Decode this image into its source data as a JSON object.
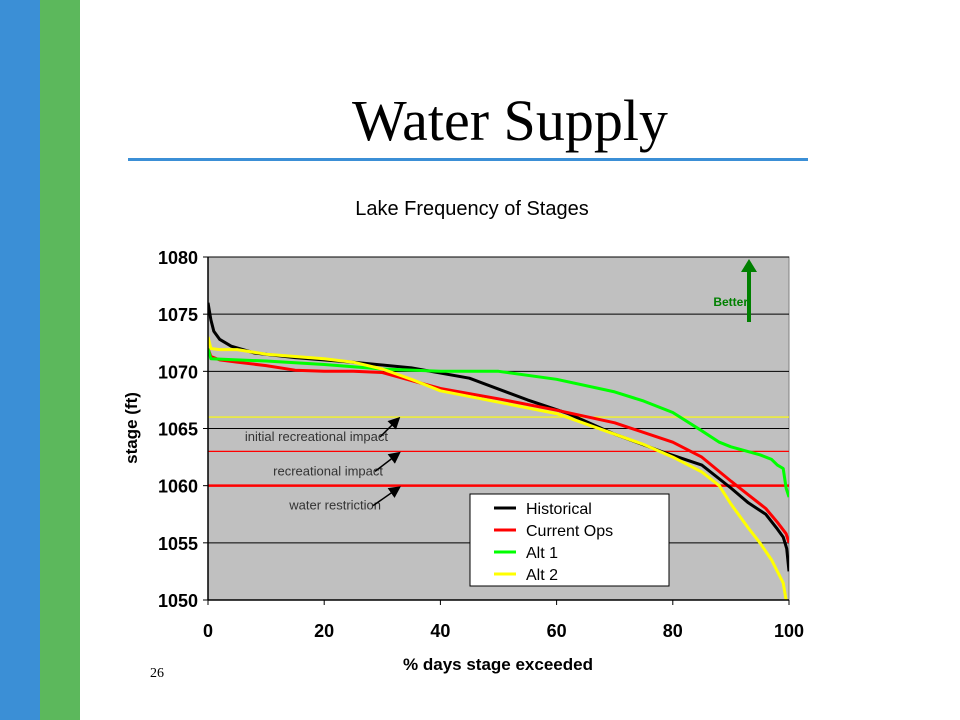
{
  "slide": {
    "title": "Water Supply",
    "number": "26"
  },
  "colors": {
    "accent_blue": "#3b8fd6",
    "accent_green": "#5cb85c",
    "plot_background": "#c0c0c0"
  },
  "chart_data": {
    "type": "line",
    "title": "Lake Frequency of Stages",
    "xlabel": "% days stage exceeded",
    "ylabel": "stage (ft)",
    "xlim": [
      0,
      100
    ],
    "ylim": [
      1050,
      1080
    ],
    "xticks": [
      0,
      20,
      40,
      60,
      80,
      100
    ],
    "yticks": [
      1050,
      1055,
      1060,
      1065,
      1070,
      1075,
      1080
    ],
    "grid": "horizontal",
    "legend_position": "bottom-right",
    "series": [
      {
        "name": "Historical",
        "color": "#000000",
        "x": [
          0,
          0.5,
          1,
          2,
          4,
          8,
          15,
          25,
          35,
          45,
          55,
          62,
          70,
          78,
          85,
          90,
          93,
          96,
          98,
          99,
          99.6,
          100
        ],
        "y": [
          1076,
          1074.5,
          1073.5,
          1072.8,
          1072.2,
          1071.6,
          1071.2,
          1070.8,
          1070.3,
          1069.4,
          1067.5,
          1066.3,
          1064.5,
          1063,
          1061.8,
          1059.8,
          1058.5,
          1057.5,
          1056.2,
          1055.5,
          1054.5,
          1052.5
        ]
      },
      {
        "name": "Current Ops",
        "color": "#ff0000",
        "x": [
          0,
          0.5,
          2,
          5,
          10,
          15,
          20,
          25,
          30,
          35,
          40,
          50,
          60,
          70,
          80,
          85,
          90,
          93,
          96,
          98,
          99.5,
          100
        ],
        "y": [
          1072,
          1071.3,
          1071,
          1070.8,
          1070.5,
          1070.1,
          1070,
          1070,
          1069.9,
          1069.2,
          1068.5,
          1067.6,
          1066.6,
          1065.5,
          1063.8,
          1062.5,
          1060.4,
          1059.2,
          1058,
          1056.8,
          1055.8,
          1055
        ]
      },
      {
        "name": "Alt 1",
        "color": "#00ff00",
        "x": [
          0,
          0.5,
          5,
          10,
          20,
          30,
          40,
          50,
          60,
          70,
          75,
          80,
          85,
          88,
          90,
          95,
          97,
          98,
          99,
          99.5,
          100
        ],
        "y": [
          1072,
          1071.1,
          1071,
          1070.9,
          1070.6,
          1070.2,
          1070,
          1070,
          1069.3,
          1068.2,
          1067.4,
          1066.4,
          1064.8,
          1063.8,
          1063.4,
          1062.7,
          1062.3,
          1061.8,
          1061.5,
          1059.8,
          1059
        ]
      },
      {
        "name": "Alt 2",
        "color": "#ffff00",
        "x": [
          0,
          0.5,
          2,
          5,
          10,
          15,
          20,
          25,
          30,
          35,
          40,
          50,
          60,
          70,
          75,
          80,
          85,
          88,
          90,
          93,
          95,
          97,
          99,
          99.5
        ],
        "y": [
          1073,
          1072,
          1071.9,
          1071.9,
          1071.5,
          1071.3,
          1071.1,
          1070.8,
          1070.2,
          1069.3,
          1068.3,
          1067.3,
          1066.3,
          1064.5,
          1063.6,
          1062.5,
          1061.2,
          1060,
          1058.4,
          1056.3,
          1055,
          1053.5,
          1051.5,
          1050
        ]
      }
    ],
    "reference_lines": [
      {
        "label": "initial recreational impact",
        "y": 1066,
        "color": "#ffff00"
      },
      {
        "label": "recreational impact",
        "y": 1063,
        "color": "#ff0000"
      },
      {
        "label": "water restriction",
        "y": 1060,
        "color": "#ff0000"
      }
    ],
    "annotation": {
      "text": "Better",
      "color": "#008000"
    }
  }
}
